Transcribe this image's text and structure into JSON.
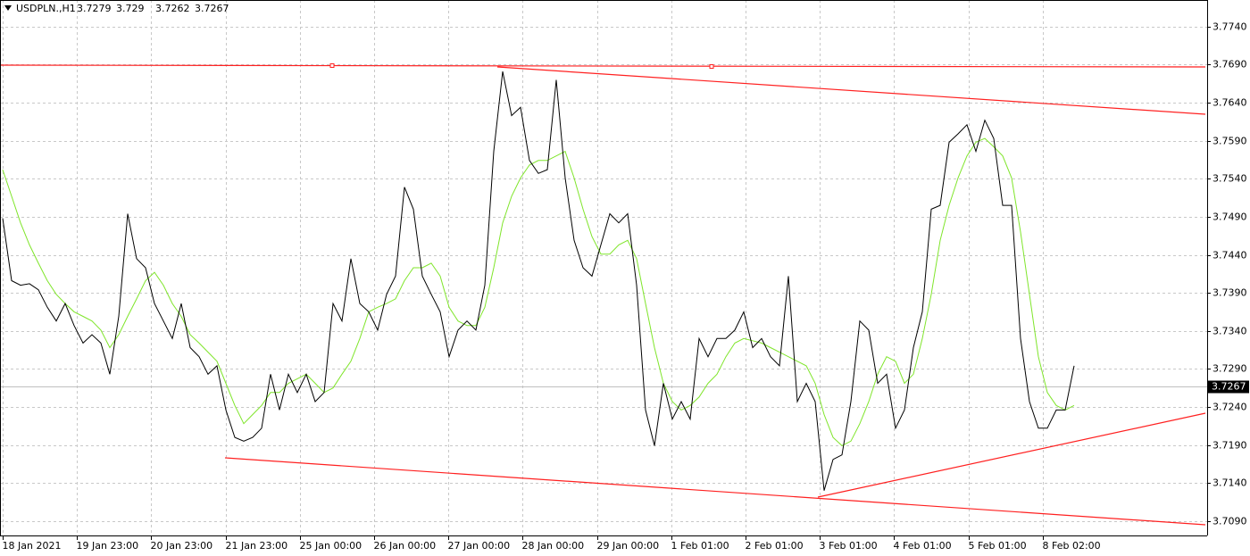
{
  "chart_data": {
    "type": "line",
    "symbol": "USDPLN.,H1",
    "ohlc": [
      3.7279,
      3.729,
      3.7262,
      3.7267
    ],
    "last_price": 3.7267,
    "x_labels": [
      "18 Jan 2021",
      "19 Jan 23:00",
      "20 Jan 23:00",
      "21 Jan 23:00",
      "25 Jan 00:00",
      "26 Jan 00:00",
      "27 Jan 00:00",
      "28 Jan 00:00",
      "29 Jan 00:00",
      "1 Feb 01:00",
      "2 Feb 01:00",
      "3 Feb 01:00",
      "4 Feb 01:00",
      "5 Feb 01:00",
      "8 Feb 02:00"
    ],
    "ylim": [
      3.7071,
      3.7775
    ],
    "yticks": [
      {
        "value": 3.774,
        "label": "3.7740"
      },
      {
        "value": 3.769,
        "label": "3.7690"
      },
      {
        "value": 3.764,
        "label": "3.7640"
      },
      {
        "value": 3.759,
        "label": "3.7590"
      },
      {
        "value": 3.754,
        "label": "3.7540"
      },
      {
        "value": 3.749,
        "label": "3.7490"
      },
      {
        "value": 3.744,
        "label": "3.7440"
      },
      {
        "value": 3.739,
        "label": "3.7390"
      },
      {
        "value": 3.734,
        "label": "3.7340"
      },
      {
        "value": 3.729,
        "label": "3.7290"
      },
      {
        "value": 3.724,
        "label": "3.7240"
      },
      {
        "value": 3.719,
        "label": "3.7190"
      },
      {
        "value": 3.714,
        "label": "3.7140"
      },
      {
        "value": 3.709,
        "label": "3.7090"
      }
    ],
    "grid": true,
    "series": [
      {
        "color": "#000000",
        "values": [
          3.7488,
          3.7406,
          3.74,
          3.7402,
          3.7394,
          3.7371,
          3.7353,
          3.7376,
          3.7347,
          3.7324,
          3.7335,
          3.7324,
          3.7283,
          3.7359,
          3.7494,
          3.7435,
          3.7423,
          3.7376,
          3.7353,
          3.733,
          3.7376,
          3.7318,
          3.7306,
          3.7283,
          3.7294,
          3.7236,
          3.72,
          3.7195,
          3.72,
          3.7212,
          3.7283,
          3.7236,
          3.7283,
          3.7259,
          3.7283,
          3.7247,
          3.7259,
          3.7376,
          3.7353,
          3.7435,
          3.7376,
          3.7365,
          3.7341,
          3.7388,
          3.7412,
          3.7529,
          3.75,
          3.7412,
          3.7388,
          3.7365,
          3.7306,
          3.7341,
          3.7353,
          3.7341,
          3.74,
          3.7576,
          3.7681,
          3.7623,
          3.7634,
          3.7564,
          3.7547,
          3.7552,
          3.767,
          3.7541,
          3.7459,
          3.7423,
          3.7412,
          3.7453,
          3.7494,
          3.7482,
          3.7494,
          3.74,
          3.7236,
          3.7189,
          3.7271,
          3.7224,
          3.7247,
          3.7224,
          3.733,
          3.7306,
          3.733,
          3.733,
          3.7341,
          3.7365,
          3.7318,
          3.733,
          3.7306,
          3.7294,
          3.7412,
          3.7247,
          3.7271,
          3.7247,
          3.713,
          3.7171,
          3.7177,
          3.7247,
          3.7353,
          3.7341,
          3.7271,
          3.7283,
          3.7212,
          3.7236,
          3.7318,
          3.7365,
          3.75,
          3.7505,
          3.7588,
          3.7599,
          3.7611,
          3.7576,
          3.7617,
          3.7593,
          3.7505,
          3.7505,
          3.733,
          3.7247,
          3.7212,
          3.7212,
          3.7236,
          3.7236,
          3.7294
        ]
      },
      {
        "color": "#7fe52a",
        "values": [
          3.7552,
          3.7517,
          3.7482,
          3.7453,
          3.7429,
          3.7406,
          3.7388,
          3.7376,
          3.7365,
          3.7359,
          3.7353,
          3.7341,
          3.7318,
          3.7335,
          3.7359,
          3.7382,
          3.7406,
          3.7417,
          3.74,
          3.7376,
          3.7359,
          3.7335,
          3.7324,
          3.7312,
          3.73,
          3.7271,
          3.7242,
          3.7218,
          3.723,
          3.7242,
          3.7259,
          3.7259,
          3.7271,
          3.7277,
          3.7283,
          3.7271,
          3.7259,
          3.7265,
          3.7283,
          3.73,
          3.733,
          3.7365,
          3.7371,
          3.7376,
          3.7382,
          3.7406,
          3.7423,
          3.7423,
          3.7429,
          3.7412,
          3.7371,
          3.7353,
          3.7347,
          3.7347,
          3.7371,
          3.7423,
          3.7482,
          3.7517,
          3.7541,
          3.7558,
          3.7564,
          3.7564,
          3.757,
          3.7576,
          3.7541,
          3.75,
          3.7464,
          3.7441,
          3.7441,
          3.7453,
          3.7459,
          3.7435,
          3.7376,
          3.7318,
          3.7271,
          3.7247,
          3.7236,
          3.7242,
          3.7253,
          3.7271,
          3.7283,
          3.7306,
          3.7324,
          3.733,
          3.7327,
          3.7324,
          3.7318,
          3.7312,
          3.7306,
          3.73,
          3.7294,
          3.7271,
          3.723,
          3.72,
          3.7189,
          3.7195,
          3.7218,
          3.7247,
          3.7283,
          3.7306,
          3.73,
          3.7271,
          3.7283,
          3.733,
          3.7388,
          3.7459,
          3.7505,
          3.7541,
          3.757,
          3.7588,
          3.7593,
          3.7582,
          3.757,
          3.7541,
          3.747,
          3.7388,
          3.7306,
          3.7259,
          3.7242,
          3.7236,
          3.7242
        ]
      }
    ]
  }
}
